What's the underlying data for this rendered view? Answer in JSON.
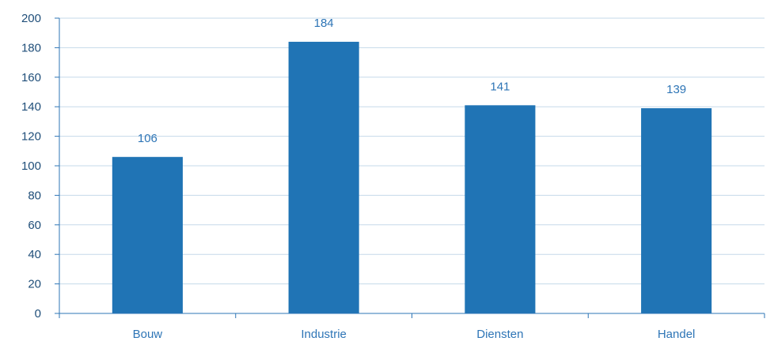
{
  "chart_data": {
    "type": "bar",
    "title": "",
    "xlabel": "",
    "ylabel": "",
    "categories": [
      "Bouw",
      "Industrie",
      "Diensten",
      "Handel"
    ],
    "values": [
      106,
      184,
      141,
      139
    ],
    "ylim": [
      0,
      200
    ],
    "ytick_step": 20,
    "grid": true,
    "legend": "none",
    "data_labels": true,
    "colors": {
      "bar": "#2074b5",
      "gridline": "#c5d9ea",
      "axis": "#2e75b6",
      "tick_text": "#1f4e79",
      "label_text": "#2e75b6"
    }
  }
}
